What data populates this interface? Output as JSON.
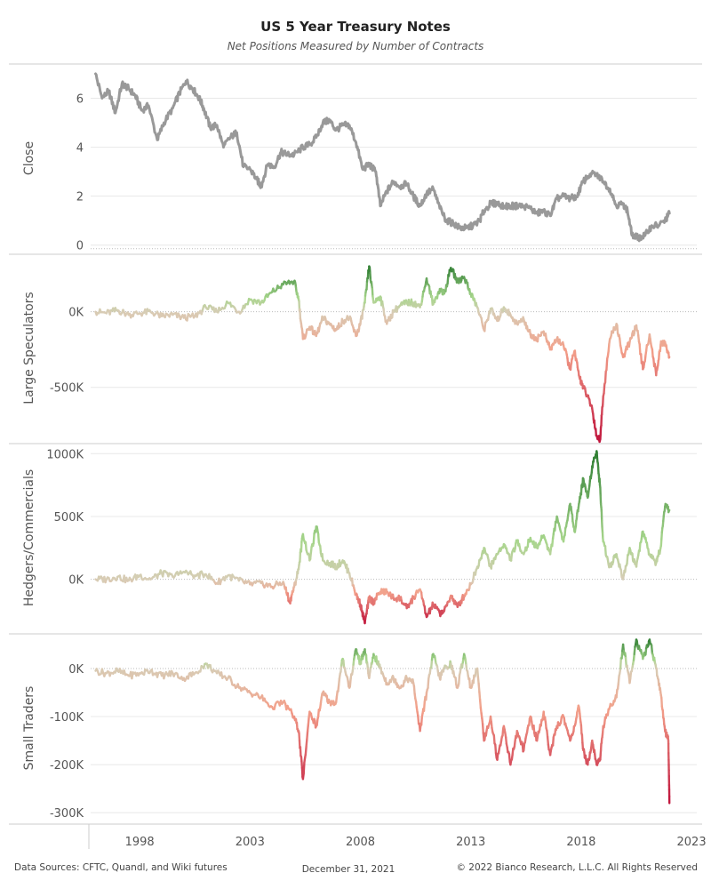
{
  "header": {
    "title": "US 5 Year Treasury Notes",
    "subtitle": "Net Positions Measured by Number of Contracts"
  },
  "footer": {
    "sources": "Data Sources: CFTC, Quandl, and Wiki futures",
    "date": "December 31, 2021",
    "copyright": "© 2022 Bianco Research, L.L.C. All Rights Reserved"
  },
  "colors": {
    "close_line": "#999999",
    "positive_dark": "#2e7d32",
    "positive_light": "#a7d68c",
    "neutral": "#d8cdb6",
    "negative_light": "#f3a08a",
    "negative_dark": "#c0143c",
    "grid": "#e8e8e8",
    "zero_line": "#bbbbbb",
    "frame": "#cccccc"
  },
  "chart_data": [
    {
      "type": "line",
      "panel": "close",
      "ylabel": "Close",
      "y_ticks": [
        0,
        2,
        4,
        6
      ],
      "tick_labels": [
        "0",
        "2",
        "4",
        "6"
      ],
      "ylim": [
        -0.3,
        7.4
      ],
      "x_ticks": [
        1998,
        2003,
        2008,
        2013,
        2018,
        2023
      ],
      "xlim": [
        1995.7,
        2023.4
      ],
      "series": [
        {
          "x": [
            1996.0,
            1996.3,
            1996.6,
            1996.9,
            1997.2,
            1997.5,
            1997.8,
            1998.1,
            1998.4,
            1998.8,
            1999.1,
            1999.5,
            1999.8,
            2000.1,
            2000.4,
            2000.7,
            2000.9,
            2001.2,
            2001.5,
            2001.8,
            2002.1,
            2002.4,
            2002.7,
            2003.0,
            2003.3,
            2003.5,
            2003.8,
            2004.1,
            2004.4,
            2004.7,
            2005.0,
            2005.4,
            2005.7,
            2006.0,
            2006.3,
            2006.6,
            2006.9,
            2007.2,
            2007.5,
            2007.8,
            2008.1,
            2008.4,
            2008.7,
            2008.9,
            2009.2,
            2009.5,
            2009.8,
            2010.1,
            2010.4,
            2010.7,
            2011.0,
            2011.3,
            2011.6,
            2011.9,
            2012.2,
            2012.5,
            2012.8,
            2013.1,
            2013.4,
            2013.6,
            2013.9,
            2014.2,
            2014.5,
            2014.8,
            2015.1,
            2015.4,
            2015.7,
            2016.0,
            2016.3,
            2016.6,
            2016.9,
            2017.2,
            2017.5,
            2017.8,
            2018.1,
            2018.4,
            2018.7,
            2019.0,
            2019.3,
            2019.6,
            2019.9,
            2020.1,
            2020.3,
            2020.6,
            2020.9,
            2021.2,
            2021.5,
            2021.8,
            2022.0
          ],
          "y": [
            7.0,
            6.0,
            6.3,
            5.4,
            6.6,
            6.4,
            6.1,
            5.5,
            5.7,
            4.3,
            5.0,
            5.6,
            6.2,
            6.7,
            6.4,
            6.0,
            5.6,
            4.8,
            4.9,
            4.0,
            4.4,
            4.6,
            3.2,
            3.1,
            2.7,
            2.4,
            3.3,
            3.2,
            3.8,
            3.7,
            3.7,
            4.0,
            4.1,
            4.4,
            5.0,
            5.1,
            4.7,
            4.9,
            4.9,
            4.2,
            3.1,
            3.3,
            3.0,
            1.6,
            2.2,
            2.6,
            2.4,
            2.5,
            2.0,
            1.6,
            2.1,
            2.3,
            1.5,
            1.0,
            0.9,
            0.7,
            0.7,
            0.8,
            1.0,
            1.4,
            1.7,
            1.7,
            1.6,
            1.6,
            1.6,
            1.6,
            1.5,
            1.3,
            1.4,
            1.2,
            1.9,
            2.0,
            1.9,
            2.0,
            2.6,
            2.9,
            2.9,
            2.6,
            2.3,
            1.6,
            1.7,
            1.4,
            0.4,
            0.3,
            0.4,
            0.8,
            0.8,
            1.0,
            1.3
          ]
        }
      ]
    },
    {
      "type": "line",
      "panel": "large_speculators",
      "ylabel": "Large Speculators",
      "y_ticks": [
        0,
        -500
      ],
      "tick_labels": [
        "0K",
        "-500K"
      ],
      "ylim": [
        -860,
        380
      ],
      "series": [
        {
          "x": [
            1996.0,
            1996.5,
            1997.0,
            1997.5,
            1998.0,
            1998.5,
            1999.0,
            1999.5,
            2000.0,
            2000.5,
            2001.0,
            2001.5,
            2002.0,
            2002.5,
            2003.0,
            2003.5,
            2004.0,
            2004.5,
            2005.0,
            2005.2,
            2005.4,
            2005.7,
            2006.0,
            2006.3,
            2006.6,
            2006.9,
            2007.2,
            2007.5,
            2007.8,
            2008.0,
            2008.2,
            2008.4,
            2008.6,
            2008.9,
            2009.2,
            2009.5,
            2009.8,
            2010.1,
            2010.4,
            2010.7,
            2011.0,
            2011.3,
            2011.6,
            2011.8,
            2012.1,
            2012.4,
            2012.7,
            2013.0,
            2013.3,
            2013.6,
            2013.9,
            2014.2,
            2014.5,
            2014.8,
            2015.1,
            2015.4,
            2015.7,
            2016.0,
            2016.3,
            2016.6,
            2016.9,
            2017.2,
            2017.5,
            2017.7,
            2017.9,
            2018.1,
            2018.3,
            2018.5,
            2018.7,
            2018.85,
            2019.0,
            2019.3,
            2019.6,
            2019.9,
            2020.2,
            2020.5,
            2020.8,
            2021.1,
            2021.4,
            2021.6,
            2021.8,
            2022.0
          ],
          "y": [
            0,
            -10,
            10,
            -20,
            -10,
            0,
            -30,
            -20,
            -40,
            -30,
            30,
            0,
            60,
            0,
            80,
            60,
            130,
            180,
            200,
            80,
            -180,
            -100,
            -160,
            -40,
            -80,
            -120,
            -60,
            -40,
            -160,
            -80,
            60,
            300,
            60,
            100,
            -80,
            0,
            40,
            60,
            60,
            30,
            220,
            50,
            150,
            120,
            290,
            200,
            230,
            120,
            30,
            -120,
            20,
            -60,
            30,
            -20,
            -80,
            -50,
            -150,
            -180,
            -130,
            -250,
            -180,
            -220,
            -380,
            -260,
            -420,
            -500,
            -560,
            -640,
            -820,
            -850,
            -560,
            -180,
            -80,
            -300,
            -200,
            -90,
            -380,
            -150,
            -420,
            -220,
            -200,
            -300
          ]
        }
      ]
    },
    {
      "type": "line",
      "panel": "hedgers_commercials",
      "ylabel": "Hedgers/Commercials",
      "y_ticks": [
        0,
        500,
        1000
      ],
      "tick_labels": [
        "0K",
        "500K",
        "1000K"
      ],
      "ylim": [
        -420,
        1080
      ],
      "series": [
        {
          "x": [
            1996.0,
            1996.5,
            1997.0,
            1997.5,
            1998.0,
            1998.5,
            1999.0,
            1999.5,
            2000.0,
            2000.5,
            2001.0,
            2001.5,
            2002.0,
            2002.5,
            2003.0,
            2003.5,
            2004.0,
            2004.5,
            2004.8,
            2005.0,
            2005.2,
            2005.4,
            2005.7,
            2006.0,
            2006.3,
            2006.6,
            2006.9,
            2007.2,
            2007.5,
            2007.8,
            2008.0,
            2008.2,
            2008.4,
            2008.6,
            2008.9,
            2009.2,
            2009.5,
            2009.8,
            2010.1,
            2010.4,
            2010.7,
            2011.0,
            2011.3,
            2011.6,
            2011.8,
            2012.1,
            2012.4,
            2012.7,
            2013.0,
            2013.3,
            2013.6,
            2013.9,
            2014.2,
            2014.5,
            2014.8,
            2015.1,
            2015.4,
            2015.7,
            2016.0,
            2016.3,
            2016.6,
            2016.9,
            2017.2,
            2017.5,
            2017.7,
            2017.9,
            2018.1,
            2018.3,
            2018.5,
            2018.7,
            2018.85,
            2019.0,
            2019.3,
            2019.6,
            2019.9,
            2020.2,
            2020.5,
            2020.8,
            2021.1,
            2021.4,
            2021.6,
            2021.8,
            2022.0
          ],
          "y": [
            0,
            0,
            20,
            -10,
            30,
            0,
            50,
            20,
            60,
            30,
            40,
            -30,
            30,
            -10,
            -40,
            -30,
            -60,
            -20,
            -180,
            -60,
            80,
            360,
            150,
            420,
            150,
            130,
            100,
            150,
            50,
            -120,
            -200,
            -350,
            -150,
            -180,
            -100,
            -100,
            -150,
            -150,
            -230,
            -150,
            -80,
            -300,
            -200,
            -270,
            -250,
            -130,
            -220,
            -130,
            -40,
            100,
            250,
            100,
            200,
            280,
            160,
            300,
            200,
            330,
            250,
            350,
            200,
            500,
            300,
            600,
            380,
            600,
            800,
            650,
            900,
            1020,
            750,
            300,
            100,
            200,
            0,
            250,
            100,
            380,
            200,
            130,
            250,
            580,
            550
          ]
        }
      ]
    },
    {
      "type": "line",
      "panel": "small_traders",
      "ylabel": "Small Traders",
      "y_ticks": [
        0,
        -100,
        -200,
        -300
      ],
      "tick_labels": [
        "0K",
        "-100K",
        "-200K",
        "-300K"
      ],
      "ylim": [
        -320,
        72
      ],
      "series": [
        {
          "x": [
            1996.0,
            1996.5,
            1997.0,
            1997.5,
            1998.0,
            1998.5,
            1999.0,
            1999.5,
            2000.0,
            2000.5,
            2001.0,
            2001.5,
            2002.0,
            2002.5,
            2003.0,
            2003.5,
            2004.0,
            2004.5,
            2005.0,
            2005.2,
            2005.4,
            2005.7,
            2006.0,
            2006.3,
            2006.6,
            2006.9,
            2007.2,
            2007.5,
            2007.8,
            2008.0,
            2008.2,
            2008.4,
            2008.6,
            2008.9,
            2009.2,
            2009.5,
            2009.8,
            2010.1,
            2010.4,
            2010.7,
            2011.0,
            2011.3,
            2011.6,
            2011.8,
            2012.1,
            2012.4,
            2012.7,
            2013.0,
            2013.3,
            2013.6,
            2013.9,
            2014.2,
            2014.5,
            2014.8,
            2015.1,
            2015.4,
            2015.7,
            2016.0,
            2016.3,
            2016.6,
            2016.9,
            2017.2,
            2017.5,
            2017.7,
            2017.9,
            2018.1,
            2018.3,
            2018.5,
            2018.7,
            2018.85,
            2019.0,
            2019.3,
            2019.6,
            2019.9,
            2020.2,
            2020.5,
            2020.8,
            2021.1,
            2021.4,
            2021.6,
            2021.8,
            2021.95,
            2022.0
          ],
          "y": [
            -5,
            -10,
            -5,
            -15,
            -10,
            -5,
            -15,
            -10,
            -20,
            -10,
            10,
            -10,
            -20,
            -40,
            -50,
            -60,
            -80,
            -70,
            -100,
            -130,
            -230,
            -90,
            -120,
            -50,
            -70,
            -70,
            20,
            -40,
            40,
            10,
            40,
            -20,
            30,
            0,
            -30,
            -20,
            -40,
            -20,
            -30,
            -130,
            -50,
            30,
            -20,
            0,
            10,
            -40,
            30,
            -40,
            0,
            -150,
            -100,
            -190,
            -120,
            -200,
            -130,
            -170,
            -100,
            -150,
            -90,
            -180,
            -120,
            -100,
            -150,
            -120,
            -80,
            -170,
            -200,
            -150,
            -200,
            -190,
            -120,
            -80,
            -60,
            50,
            -30,
            60,
            20,
            60,
            0,
            -50,
            -130,
            -150,
            -280
          ]
        }
      ]
    }
  ],
  "axes": {
    "x_tick_labels": [
      "1998",
      "2003",
      "2008",
      "2013",
      "2018",
      "2023"
    ]
  }
}
